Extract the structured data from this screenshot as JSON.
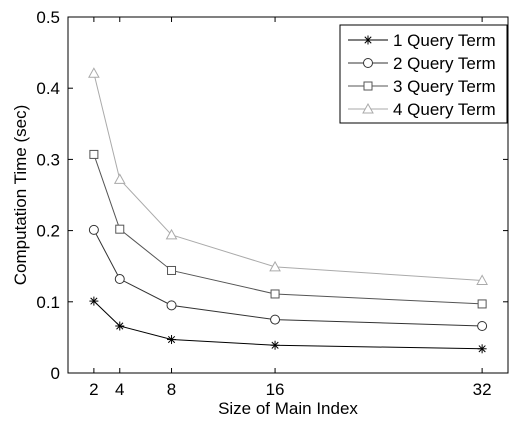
{
  "chart_data": {
    "type": "line",
    "xlabel": "Size of Main Index",
    "ylabel": "Computation Time (sec)",
    "x": [
      2,
      4,
      8,
      16,
      32
    ],
    "xlim": [
      0,
      34
    ],
    "ylim": [
      0,
      0.5
    ],
    "xticks": [
      2,
      4,
      8,
      16,
      32
    ],
    "yticks": [
      0,
      0.1,
      0.2,
      0.3,
      0.4,
      0.5
    ],
    "xtick_labels": [
      "2",
      "4",
      "8",
      "16",
      "32"
    ],
    "ytick_labels": [
      "0",
      "0.1",
      "0.2",
      "0.3",
      "0.4",
      "0.5"
    ],
    "grid": false,
    "legend_position": "top-right",
    "series": [
      {
        "name": "1 Query Term",
        "marker": "asterisk",
        "color": "#000000",
        "values": [
          0.101,
          0.066,
          0.047,
          0.039,
          0.034
        ]
      },
      {
        "name": "2 Query Term",
        "marker": "circle",
        "color": "#333333",
        "values": [
          0.201,
          0.132,
          0.095,
          0.075,
          0.066
        ]
      },
      {
        "name": "3 Query Term",
        "marker": "square",
        "color": "#555555",
        "values": [
          0.307,
          0.202,
          0.144,
          0.111,
          0.097
        ]
      },
      {
        "name": "4 Query Term",
        "marker": "triangle",
        "color": "#aaaaaa",
        "values": [
          0.421,
          0.272,
          0.194,
          0.149,
          0.13
        ]
      }
    ]
  }
}
